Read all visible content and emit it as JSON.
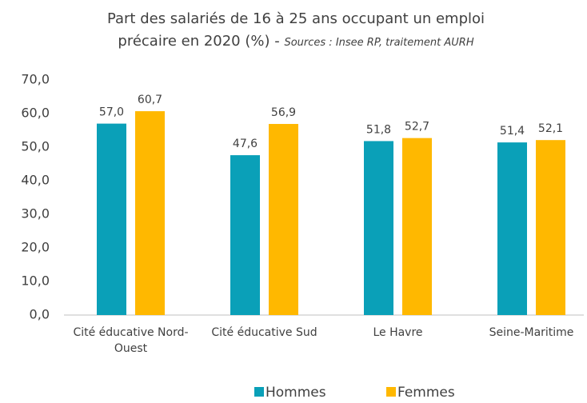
{
  "chart_data": {
    "type": "bar",
    "title": "Part des salariés de 16 à 25 ans occupant un emploi précaire en 2020 (%) -",
    "source": "Sources : Insee RP, traitement AURH",
    "categories": [
      "Cité éducative Nord-Ouest",
      "Cité éducative Sud",
      "Le Havre",
      "Seine-Maritime"
    ],
    "series": [
      {
        "name": "Hommes",
        "color": "#0aa0b8",
        "values": [
          57.0,
          47.6,
          51.8,
          51.4
        ],
        "value_labels": [
          "57,0",
          "47,6",
          "51,8",
          "51,4"
        ]
      },
      {
        "name": "Femmes",
        "color": "#ffb800",
        "values": [
          60.7,
          56.9,
          52.7,
          52.1
        ],
        "value_labels": [
          "60,7",
          "56,9",
          "52,7",
          "52,1"
        ]
      }
    ],
    "ylim": [
      0,
      70
    ],
    "yticks": [
      {
        "value": 0,
        "label": "0,0"
      },
      {
        "value": 10,
        "label": "10,0"
      },
      {
        "value": 20,
        "label": "20,0"
      },
      {
        "value": 30,
        "label": "30,0"
      },
      {
        "value": 40,
        "label": "40,0"
      },
      {
        "value": 50,
        "label": "50,0"
      },
      {
        "value": 60,
        "label": "60,0"
      },
      {
        "value": 70,
        "label": "70,0"
      }
    ],
    "grid": false,
    "legend": "bottom"
  }
}
